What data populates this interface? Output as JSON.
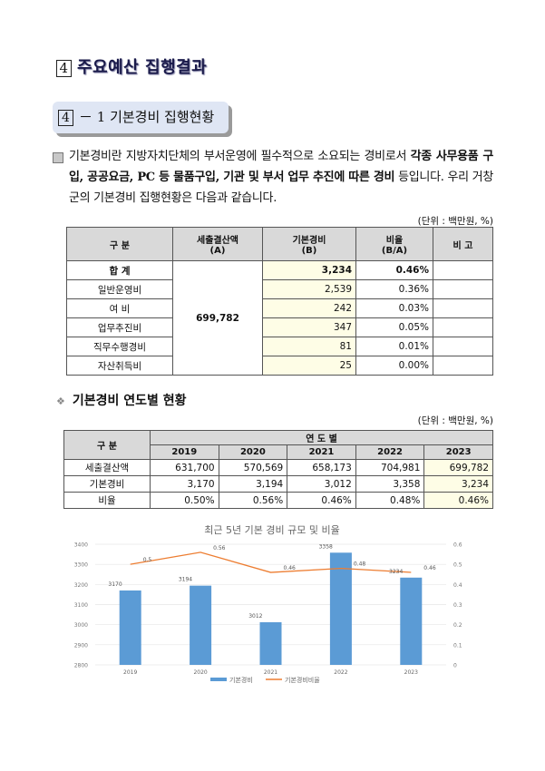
{
  "section": {
    "number": "4",
    "title": "주요예산 집행결과"
  },
  "subsection": {
    "number": "4",
    "title": "－ 1 기본경비 집행현황"
  },
  "paragraph": {
    "part1": "기본경비란 지방자치단체의 부서운영에 필수적으로 소요되는 경비로서 ",
    "bold": "각종 사무용품 구입, 공공요금, PC 등 물품구입, 기관 및 부서 업무 추진에 따른 경비",
    "part2": " 등입니다. 우리 거창군의 기본경비 집행현황은 다음과 같습니다."
  },
  "unit_label": "(단위 : 백만원, %)",
  "table1": {
    "headers": [
      "구   분",
      "세출결산액\n(A)",
      "기본경비\n(B)",
      "비율\n(B/A)",
      "비   고"
    ],
    "total_budget": "699,782",
    "rows": [
      {
        "label": "합   계",
        "amount": "3,234",
        "ratio": "0.46%",
        "note": ""
      },
      {
        "label": "일반운영비",
        "amount": "2,539",
        "ratio": "0.36%",
        "note": ""
      },
      {
        "label": "여   비",
        "amount": "242",
        "ratio": "0.03%",
        "note": ""
      },
      {
        "label": "업무추진비",
        "amount": "347",
        "ratio": "0.05%",
        "note": ""
      },
      {
        "label": "직무수행경비",
        "amount": "81",
        "ratio": "0.01%",
        "note": ""
      },
      {
        "label": "자산취득비",
        "amount": "25",
        "ratio": "0.00%",
        "note": ""
      }
    ]
  },
  "section2_title": "기본경비 연도별 현황",
  "table2": {
    "header_label": "구   분",
    "group_header": "연   도   별",
    "years": [
      "2019",
      "2020",
      "2021",
      "2022",
      "2023"
    ],
    "rows": [
      {
        "label": "세출결산액",
        "values": [
          "631,700",
          "570,569",
          "658,173",
          "704,981",
          "699,782"
        ]
      },
      {
        "label": "기본경비",
        "values": [
          "3,170",
          "3,194",
          "3,012",
          "3,358",
          "3,234"
        ]
      },
      {
        "label": "비율",
        "values": [
          "0.50%",
          "0.56%",
          "0.46%",
          "0.48%",
          "0.46%"
        ]
      }
    ]
  },
  "chart_data": {
    "type": "bar",
    "title": "최근 5년 기본 경비 규모 및 비율",
    "categories": [
      "2019",
      "2020",
      "2021",
      "2022",
      "2023"
    ],
    "series": [
      {
        "name": "기본경비",
        "type": "bar",
        "axis": "left",
        "values": [
          3170,
          3194,
          3012,
          3358,
          3234
        ],
        "color": "#5b9bd5"
      },
      {
        "name": "기본경비비율",
        "type": "line",
        "axis": "right",
        "values": [
          0.5,
          0.56,
          0.46,
          0.48,
          0.46
        ],
        "color": "#ed7d31"
      }
    ],
    "ylim_left": [
      2800,
      3400
    ],
    "yticks_left": [
      2800,
      2900,
      3000,
      3100,
      3200,
      3300,
      3400
    ],
    "ylim_right": [
      0,
      0.6
    ],
    "yticks_right": [
      0,
      0.1,
      0.2,
      0.3,
      0.4,
      0.5,
      0.6
    ],
    "grid": true,
    "legend": "bottom"
  }
}
